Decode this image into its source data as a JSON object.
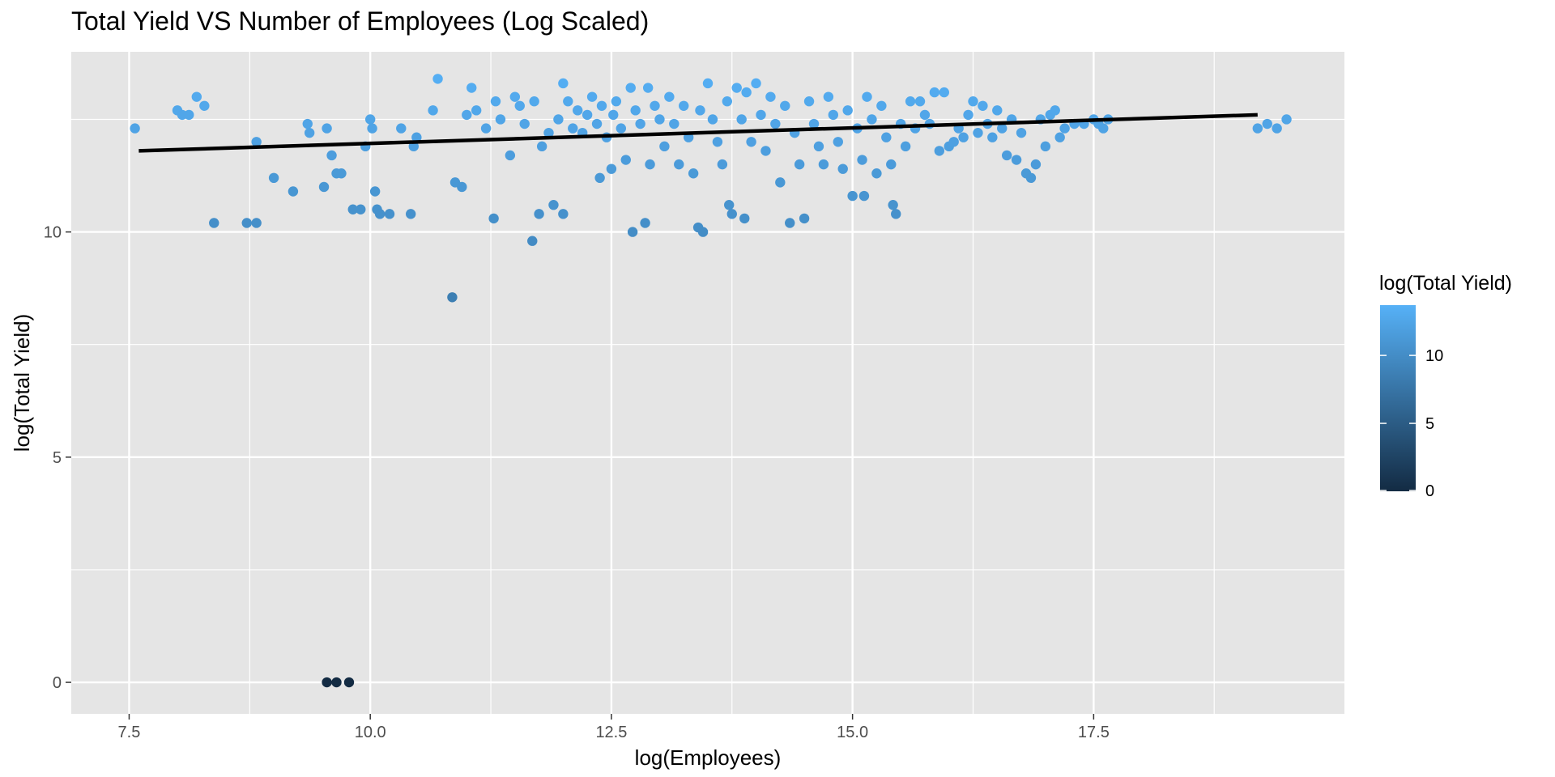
{
  "chart_data": {
    "type": "scatter",
    "title": "Total Yield VS Number of Employees (Log Scaled)",
    "xlabel": "log(Employees)",
    "ylabel": "log(Total Yield)",
    "xlim": [
      6.9,
      20.1
    ],
    "ylim": [
      -0.7,
      14.0
    ],
    "x_ticks": [
      7.5,
      10.0,
      12.5,
      15.0,
      17.5
    ],
    "x_tick_labels": [
      "7.5",
      "10.0",
      "12.5",
      "15.0",
      "17.5"
    ],
    "y_ticks": [
      0,
      5,
      10
    ],
    "y_tick_labels": [
      "0",
      "5",
      "10"
    ],
    "grid": true,
    "legend": {
      "title": "log(Total Yield)",
      "position": "right",
      "type": "colorbar",
      "range": [
        0,
        13.7
      ],
      "ticks": [
        0,
        5,
        10
      ],
      "tick_labels": [
        "0",
        "5",
        "10"
      ],
      "color_low": "#132B43",
      "color_high": "#56B1F7"
    },
    "panel_background": "#E5E5E5",
    "grid_color": "#FFFFFF",
    "trend_line": {
      "x": [
        7.6,
        19.2
      ],
      "y": [
        11.8,
        12.6
      ],
      "color": "#000000"
    },
    "points": [
      [
        7.56,
        12.3
      ],
      [
        8.0,
        12.7
      ],
      [
        8.05,
        12.6
      ],
      [
        8.12,
        12.6
      ],
      [
        8.2,
        13.0
      ],
      [
        8.28,
        12.8
      ],
      [
        8.38,
        10.2
      ],
      [
        8.72,
        10.2
      ],
      [
        8.82,
        10.2
      ],
      [
        8.82,
        12.0
      ],
      [
        9.0,
        11.2
      ],
      [
        9.2,
        10.9
      ],
      [
        9.35,
        12.4
      ],
      [
        9.37,
        12.2
      ],
      [
        9.52,
        11.0
      ],
      [
        9.55,
        12.3
      ],
      [
        9.6,
        11.7
      ],
      [
        9.65,
        11.3
      ],
      [
        9.7,
        11.3
      ],
      [
        9.82,
        10.5
      ],
      [
        9.9,
        10.5
      ],
      [
        9.95,
        11.9
      ],
      [
        10.0,
        12.5
      ],
      [
        10.02,
        12.3
      ],
      [
        10.05,
        10.9
      ],
      [
        10.07,
        10.5
      ],
      [
        10.1,
        10.4
      ],
      [
        10.2,
        10.4
      ],
      [
        10.32,
        12.3
      ],
      [
        10.42,
        10.4
      ],
      [
        10.45,
        11.9
      ],
      [
        10.48,
        12.1
      ],
      [
        10.65,
        12.7
      ],
      [
        10.7,
        13.4
      ],
      [
        10.85,
        8.55
      ],
      [
        10.88,
        11.1
      ],
      [
        10.95,
        11.0
      ],
      [
        11.0,
        12.6
      ],
      [
        11.05,
        13.2
      ],
      [
        11.1,
        12.7
      ],
      [
        11.2,
        12.3
      ],
      [
        11.28,
        10.3
      ],
      [
        11.3,
        12.9
      ],
      [
        11.35,
        12.5
      ],
      [
        11.45,
        11.7
      ],
      [
        11.5,
        13.0
      ],
      [
        11.55,
        12.8
      ],
      [
        11.6,
        12.4
      ],
      [
        11.68,
        9.8
      ],
      [
        11.7,
        12.9
      ],
      [
        11.75,
        10.4
      ],
      [
        11.78,
        11.9
      ],
      [
        11.85,
        12.2
      ],
      [
        11.9,
        10.6
      ],
      [
        11.95,
        12.5
      ],
      [
        12.0,
        10.4
      ],
      [
        12.0,
        13.3
      ],
      [
        12.05,
        12.9
      ],
      [
        12.1,
        12.3
      ],
      [
        12.15,
        12.7
      ],
      [
        12.2,
        12.2
      ],
      [
        12.25,
        12.6
      ],
      [
        12.3,
        13.0
      ],
      [
        12.35,
        12.4
      ],
      [
        12.38,
        11.2
      ],
      [
        12.4,
        12.8
      ],
      [
        12.45,
        12.1
      ],
      [
        12.5,
        11.4
      ],
      [
        12.52,
        12.6
      ],
      [
        12.55,
        12.9
      ],
      [
        12.6,
        12.3
      ],
      [
        12.65,
        11.6
      ],
      [
        12.7,
        13.2
      ],
      [
        12.72,
        10.0
      ],
      [
        12.75,
        12.7
      ],
      [
        12.8,
        12.4
      ],
      [
        12.85,
        10.2
      ],
      [
        12.88,
        13.2
      ],
      [
        12.9,
        11.5
      ],
      [
        12.95,
        12.8
      ],
      [
        13.0,
        12.5
      ],
      [
        13.05,
        11.9
      ],
      [
        13.1,
        13.0
      ],
      [
        13.15,
        12.4
      ],
      [
        13.2,
        11.5
      ],
      [
        13.25,
        12.8
      ],
      [
        13.3,
        12.1
      ],
      [
        13.35,
        11.3
      ],
      [
        13.4,
        10.1
      ],
      [
        13.42,
        12.7
      ],
      [
        13.45,
        10.0
      ],
      [
        13.5,
        13.3
      ],
      [
        13.55,
        12.5
      ],
      [
        13.6,
        12.0
      ],
      [
        13.65,
        11.5
      ],
      [
        13.7,
        12.9
      ],
      [
        13.72,
        10.6
      ],
      [
        13.75,
        10.4
      ],
      [
        13.8,
        13.2
      ],
      [
        13.85,
        12.5
      ],
      [
        13.88,
        10.3
      ],
      [
        13.9,
        13.1
      ],
      [
        13.95,
        12.0
      ],
      [
        14.0,
        13.3
      ],
      [
        14.05,
        12.6
      ],
      [
        14.1,
        11.8
      ],
      [
        14.15,
        13.0
      ],
      [
        14.2,
        12.4
      ],
      [
        14.25,
        11.1
      ],
      [
        14.3,
        12.8
      ],
      [
        14.35,
        10.2
      ],
      [
        14.4,
        12.2
      ],
      [
        14.45,
        11.5
      ],
      [
        14.5,
        10.3
      ],
      [
        14.55,
        12.9
      ],
      [
        14.6,
        12.4
      ],
      [
        14.65,
        11.9
      ],
      [
        14.7,
        11.5
      ],
      [
        14.75,
        13.0
      ],
      [
        14.8,
        12.6
      ],
      [
        14.85,
        12.0
      ],
      [
        14.9,
        11.4
      ],
      [
        14.95,
        12.7
      ],
      [
        15.0,
        10.8
      ],
      [
        15.05,
        12.3
      ],
      [
        15.1,
        11.6
      ],
      [
        15.12,
        10.8
      ],
      [
        15.15,
        13.0
      ],
      [
        15.2,
        12.5
      ],
      [
        15.25,
        11.3
      ],
      [
        15.3,
        12.8
      ],
      [
        15.35,
        12.1
      ],
      [
        15.4,
        11.5
      ],
      [
        15.42,
        10.6
      ],
      [
        15.45,
        10.4
      ],
      [
        15.5,
        12.4
      ],
      [
        15.55,
        11.9
      ],
      [
        15.6,
        12.9
      ],
      [
        15.65,
        12.3
      ],
      [
        15.7,
        12.9
      ],
      [
        15.75,
        12.6
      ],
      [
        15.8,
        12.4
      ],
      [
        15.85,
        13.1
      ],
      [
        15.9,
        11.8
      ],
      [
        15.95,
        13.1
      ],
      [
        16.0,
        11.9
      ],
      [
        16.05,
        12.0
      ],
      [
        16.1,
        12.3
      ],
      [
        16.15,
        12.1
      ],
      [
        16.2,
        12.6
      ],
      [
        16.25,
        12.9
      ],
      [
        16.3,
        12.2
      ],
      [
        16.35,
        12.8
      ],
      [
        16.4,
        12.4
      ],
      [
        16.45,
        12.1
      ],
      [
        16.5,
        12.7
      ],
      [
        16.55,
        12.3
      ],
      [
        16.6,
        11.7
      ],
      [
        16.65,
        12.5
      ],
      [
        16.7,
        11.6
      ],
      [
        16.75,
        12.2
      ],
      [
        16.8,
        11.3
      ],
      [
        16.85,
        11.2
      ],
      [
        16.9,
        11.5
      ],
      [
        16.95,
        12.5
      ],
      [
        17.0,
        11.9
      ],
      [
        17.05,
        12.6
      ],
      [
        17.1,
        12.7
      ],
      [
        17.15,
        12.1
      ],
      [
        17.2,
        12.3
      ],
      [
        17.3,
        12.4
      ],
      [
        17.4,
        12.4
      ],
      [
        17.5,
        12.5
      ],
      [
        17.55,
        12.4
      ],
      [
        17.6,
        12.3
      ],
      [
        17.65,
        12.5
      ],
      [
        19.2,
        12.3
      ],
      [
        19.3,
        12.4
      ],
      [
        19.4,
        12.3
      ],
      [
        19.5,
        12.5
      ],
      [
        9.55,
        0.0
      ],
      [
        9.65,
        0.0
      ],
      [
        9.78,
        0.0
      ]
    ]
  }
}
